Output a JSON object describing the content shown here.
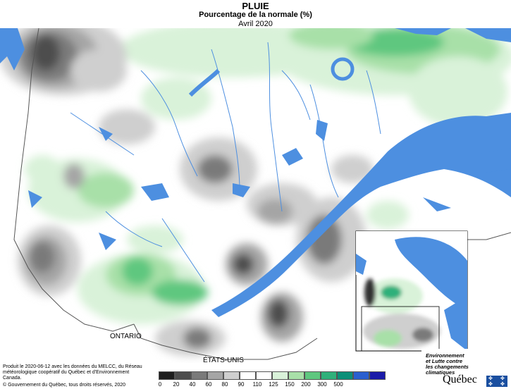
{
  "title": {
    "line1": "PLUIE",
    "line2": "Pourcentage de la normale (%)",
    "line3": "Avril 2020"
  },
  "map_labels": {
    "ontario": "ONTARIO",
    "usa": "ÉTATS-UNIS"
  },
  "credits": {
    "line1": "Produit le 2020-06-12 avec les données du MELCC, du Réseau météorologique coopératif du Québec et d'Environnement Canada.",
    "line2": "© Gouvernement du Québec, tous droits réservés, 2020"
  },
  "legend": {
    "colors": [
      "#1e1e1e",
      "#4d4d4d",
      "#7a7a7a",
      "#a5a5a5",
      "#cfcfcf",
      "#ffffff",
      "#ffffff",
      "#d9f2d9",
      "#a8e0a8",
      "#5fc77f",
      "#2fb07a",
      "#0b8f78",
      "#2a5fcf",
      "#1a1aa8"
    ],
    "ticks": [
      "0",
      "20",
      "40",
      "60",
      "80",
      "90",
      "110",
      "125",
      "150",
      "200",
      "300",
      "500"
    ]
  },
  "ministry": {
    "line1": "Environnement",
    "line2": "et Lutte contre",
    "line3": "les changements",
    "line4": "climatiques"
  },
  "logo": "Québec",
  "colors": {
    "water": "#4d8fe0",
    "land_outside": "#ffffff",
    "border": "#555555"
  }
}
